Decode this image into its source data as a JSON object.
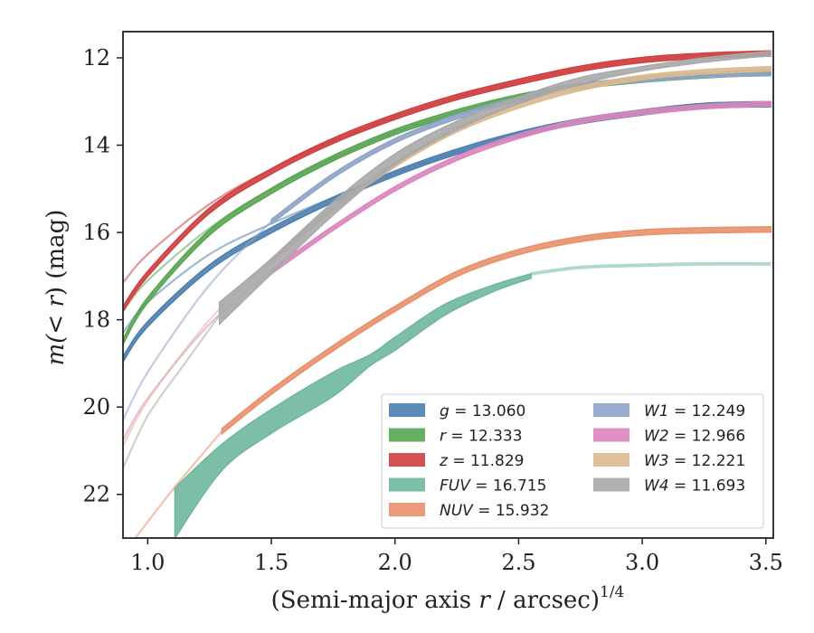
{
  "chart_data": {
    "type": "line",
    "title": "",
    "xlabel": "(Semi-major axis r / arcsec)",
    "xlabel_parts": {
      "pre": "(Semi-major axis ",
      "var": "r",
      "post": " / arcsec)",
      "sup": "1/4"
    },
    "ylabel_parts": {
      "pre": "m(",
      "mid": "< r",
      "post": ") (mag)"
    },
    "xlim": [
      0.9,
      3.53
    ],
    "ylim": [
      23.0,
      11.4
    ],
    "y_inverted": true,
    "xticks": [
      1.0,
      1.5,
      2.0,
      2.5,
      3.0,
      3.5
    ],
    "xtick_labels": [
      "1.0",
      "1.5",
      "2.0",
      "2.5",
      "3.0",
      "3.5"
    ],
    "yticks": [
      12,
      14,
      16,
      18,
      20,
      22
    ],
    "ytick_labels": [
      "12",
      "14",
      "16",
      "18",
      "20",
      "22"
    ],
    "grid": false,
    "legend_position": "lower-right",
    "series": [
      {
        "name": "g",
        "label": "13.060",
        "color": "#4c7fb0",
        "total_mag": 13.06,
        "band_x": [
          0.9,
          1.0,
          1.25,
          1.5,
          1.75,
          2.0,
          2.25,
          2.5,
          2.75,
          3.0,
          3.25,
          3.52
        ],
        "band_y": [
          18.9,
          18.1,
          16.8,
          15.95,
          15.25,
          14.65,
          14.15,
          13.75,
          13.45,
          13.25,
          13.1,
          13.06
        ],
        "band_width": 0.06,
        "ext_x": [
          0.9,
          1.0,
          1.25,
          1.5,
          1.75,
          2.0,
          2.25,
          2.5,
          2.75,
          3.0,
          3.25,
          3.52
        ],
        "ext_y": [
          18.3,
          17.6,
          16.5,
          15.8,
          15.2,
          14.65,
          14.15,
          13.75,
          13.45,
          13.25,
          13.1,
          13.06
        ]
      },
      {
        "name": "r",
        "label": "12.333",
        "color": "#5aa552",
        "total_mag": 12.333,
        "band_x": [
          0.9,
          1.0,
          1.25,
          1.5,
          1.75,
          2.0,
          2.25,
          2.5,
          2.75,
          3.0,
          3.25,
          3.52
        ],
        "band_y": [
          18.5,
          17.55,
          16.0,
          15.05,
          14.3,
          13.7,
          13.25,
          12.9,
          12.65,
          12.5,
          12.4,
          12.33
        ],
        "band_width": 0.06,
        "ext_x": [
          0.9,
          1.0,
          1.25,
          1.5,
          1.75,
          2.0,
          2.25,
          2.5,
          2.75,
          3.0,
          3.25,
          3.52
        ],
        "ext_y": [
          17.8,
          17.1,
          15.9,
          15.0,
          14.3,
          13.7,
          13.25,
          12.9,
          12.65,
          12.5,
          12.4,
          12.33
        ]
      },
      {
        "name": "z",
        "label": "11.829",
        "color": "#cf3e3e",
        "total_mag": 11.829,
        "band_x": [
          0.9,
          1.0,
          1.25,
          1.5,
          1.75,
          2.0,
          2.25,
          2.5,
          2.75,
          3.0,
          3.25,
          3.52
        ],
        "band_y": [
          17.75,
          16.95,
          15.5,
          14.6,
          13.9,
          13.35,
          12.9,
          12.55,
          12.25,
          12.05,
          11.95,
          11.9
        ],
        "band_width": 0.06,
        "ext_x": [
          0.9,
          1.0,
          1.25,
          1.5,
          1.75,
          2.0,
          2.25,
          2.5,
          2.75,
          3.0,
          3.25,
          3.52
        ],
        "ext_y": [
          17.15,
          16.5,
          15.35,
          14.55,
          13.9,
          13.35,
          12.9,
          12.55,
          12.25,
          12.05,
          11.95,
          11.9
        ]
      },
      {
        "name": "FUV",
        "label": "16.715",
        "color": "#6fb79c",
        "total_mag": 16.715,
        "band_x": [
          1.11,
          1.3,
          1.5,
          1.75,
          1.9,
          2.0,
          2.2,
          2.4,
          2.55
        ],
        "band_upper": [
          21.85,
          20.85,
          20.05,
          19.2,
          18.8,
          18.4,
          17.65,
          17.2,
          16.95
        ],
        "band_lower": [
          23.0,
          21.45,
          20.6,
          19.75,
          19.05,
          18.7,
          17.9,
          17.35,
          17.05
        ],
        "ext_x": [
          2.55,
          2.75,
          3.0,
          3.25,
          3.52
        ],
        "ext_y": [
          16.95,
          16.8,
          16.75,
          16.72,
          16.72
        ],
        "ext_width": 0.04
      },
      {
        "name": "NUV",
        "label": "15.932",
        "color": "#e8906c",
        "total_mag": 15.932,
        "band_x": [
          1.3,
          1.5,
          1.75,
          2.0,
          2.25,
          2.5,
          2.75,
          3.0,
          3.25,
          3.52
        ],
        "band_y": [
          20.55,
          19.65,
          18.65,
          17.75,
          16.95,
          16.45,
          16.15,
          16.0,
          15.95,
          15.93
        ],
        "band_width": 0.06,
        "ext_x": [
          0.95,
          1.1,
          1.3
        ],
        "ext_y": [
          23.0,
          21.9,
          20.55
        ]
      },
      {
        "name": "W1",
        "label": "12.249",
        "color": "#8fa3c8",
        "total_mag": 12.249,
        "band_x": [
          0.9,
          1.0,
          1.25,
          1.5,
          1.75,
          2.0,
          2.25,
          2.5,
          2.75,
          3.0,
          3.25,
          3.52
        ],
        "band_y": [
          20.3,
          19.2,
          17.2,
          15.75,
          14.7,
          13.9,
          13.35,
          12.95,
          12.65,
          12.5,
          12.4,
          12.36
        ],
        "band_width": 0.05,
        "light_until": 1.3
      },
      {
        "name": "W2",
        "label": "12.966",
        "color": "#d986bd",
        "total_mag": 12.966,
        "band_x": [
          0.9,
          1.0,
          1.25,
          1.5,
          1.75,
          2.0,
          2.25,
          2.5,
          2.75,
          3.0,
          3.25,
          3.52
        ],
        "band_y": [
          20.75,
          19.8,
          18.1,
          16.9,
          15.9,
          15.0,
          14.3,
          13.8,
          13.45,
          13.25,
          13.12,
          13.05
        ],
        "band_width": 0.05,
        "light_until": 1.3
      },
      {
        "name": "W3",
        "label": "12.221",
        "color": "#dcb98f",
        "total_mag": 12.221,
        "band_x": [
          0.9,
          1.0,
          1.25,
          1.5,
          1.75,
          2.0,
          2.25,
          2.5,
          2.75,
          3.0,
          3.25,
          3.52
        ],
        "band_y": [
          20.9,
          19.85,
          18.0,
          16.65,
          15.45,
          14.45,
          13.65,
          13.1,
          12.7,
          12.45,
          12.32,
          12.25
        ],
        "band_width": 0.05,
        "light_until": 1.3
      },
      {
        "name": "W4",
        "label": "11.693",
        "color": "#a9a9a9",
        "total_mag": 11.693,
        "band_x": [
          1.29,
          1.5,
          1.75,
          2.0,
          2.25,
          2.5,
          2.75,
          3.0,
          3.25,
          3.52
        ],
        "band_upper": [
          17.6,
          16.6,
          15.3,
          14.2,
          13.45,
          12.9,
          12.45,
          12.2,
          12.0,
          11.85
        ],
        "band_lower": [
          18.1,
          16.95,
          15.6,
          14.45,
          13.65,
          13.05,
          12.6,
          12.3,
          12.1,
          11.95
        ],
        "ext_x": [
          0.9,
          1.0,
          1.15,
          1.29
        ],
        "ext_y": [
          21.4,
          20.2,
          19.0,
          17.9
        ]
      }
    ]
  }
}
